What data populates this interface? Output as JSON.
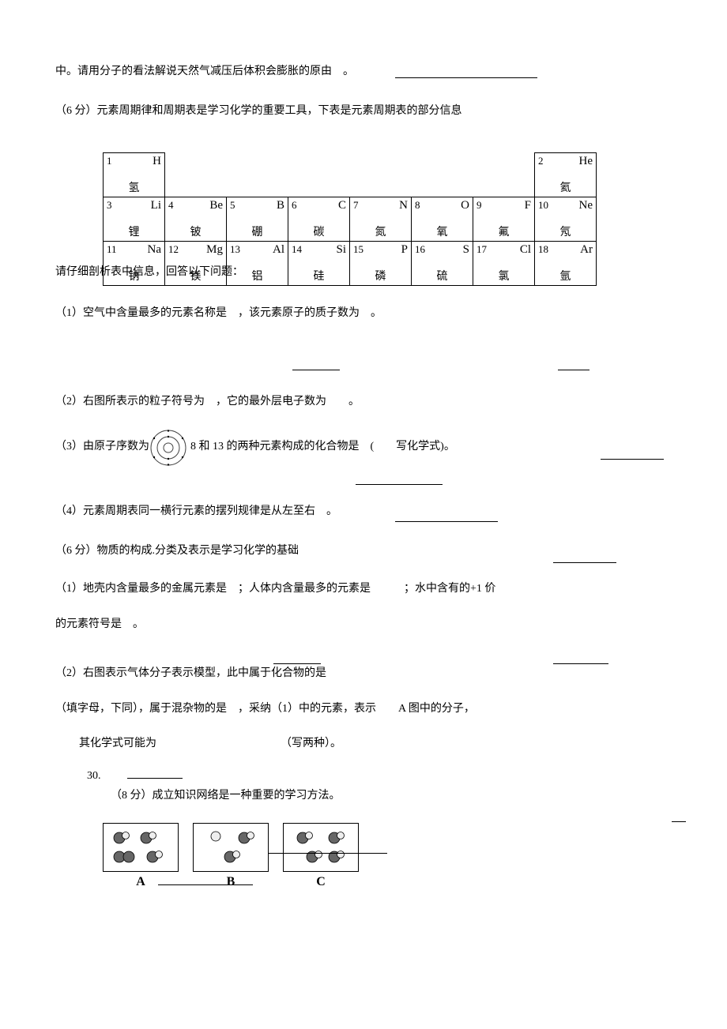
{
  "p1": "中。请用分子的看法解说天然气减压后体积会膨胀的原由　。",
  "p2": "（6 分）元素周期律和周期表是学习化学的重要工具，下表是元素周期表的部分信息",
  "periodic_table": {
    "rows": [
      [
        {
          "num": "1",
          "sym": "H",
          "name": "氢"
        },
        {
          "empty": true
        },
        {
          "empty": true
        },
        {
          "empty": true
        },
        {
          "empty": true
        },
        {
          "empty": true
        },
        {
          "empty": true
        },
        {
          "num": "2",
          "sym": "He",
          "name": "氦"
        }
      ],
      [
        {
          "num": "3",
          "sym": "Li",
          "name": "锂"
        },
        {
          "num": "4",
          "sym": "Be",
          "name": "铍"
        },
        {
          "num": "5",
          "sym": "B",
          "name": "硼"
        },
        {
          "num": "6",
          "sym": "C",
          "name": "碳"
        },
        {
          "num": "7",
          "sym": "N",
          "name": "氮"
        },
        {
          "num": "8",
          "sym": "O",
          "name": "氧"
        },
        {
          "num": "9",
          "sym": "F",
          "name": "氟"
        },
        {
          "num": "10",
          "sym": "Ne",
          "name": "氖"
        }
      ],
      [
        {
          "num": "11",
          "sym": "Na",
          "name": "钠"
        },
        {
          "num": "12",
          "sym": "Mg",
          "name": "镁"
        },
        {
          "num": "13",
          "sym": "Al",
          "name": "铝"
        },
        {
          "num": "14",
          "sym": "Si",
          "name": "硅"
        },
        {
          "num": "15",
          "sym": "P",
          "name": "磷"
        },
        {
          "num": "16",
          "sym": "S",
          "name": "硫"
        },
        {
          "num": "17",
          "sym": "Cl",
          "name": "氯"
        },
        {
          "num": "18",
          "sym": "Ar",
          "name": "氩"
        }
      ]
    ]
  },
  "overlay": "请仔细剖析表中信息，回答以下问题：",
  "q1": "（1）空气中含量最多的元素名称是　，该元素原子的质子数为　。",
  "q2": "（2）右图所表示的粒子符号为　，它的最外层电子数为　　。",
  "q3a": "（3）由原子序数为",
  "q3b": "8 和 13 的两种元素构成的化合物是　(　　写化学式)。",
  "q4": "（4）元素周期表同一横行元素的摆列规律是从左至右　。",
  "p3": "（6 分）物质的构成.分类及表示是学习化学的基础",
  "q5": "（1）地壳内含量最多的金属元素是　；人体内含量最多的元素是　　　；水中含有的+1 价",
  "q5b": "的元素符号是　。",
  "q6a": "（2）右图表示气体分子表示模型，此中属于化合物的是",
  "q6b": "（填字母，下同），属于混杂物的是　，采纳（1）中的元素，表示　　A 图中的分子，",
  "q6c": "其化学式可能为",
  "q6d": "（写两种）。",
  "q30num": "30.",
  "q30": "（8 分）成立知识网络是一种重要的学习方法。",
  "mol_labels": [
    "A",
    "B",
    "C"
  ],
  "colors": {
    "bg": "#ffffff",
    "text": "#000000",
    "border": "#000000",
    "atom_dark": "#666666",
    "atom_light": "#eeeeee"
  }
}
